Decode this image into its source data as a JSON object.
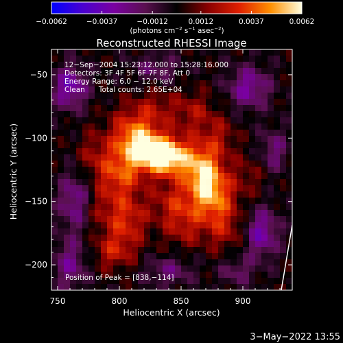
{
  "chart_data": {
    "type": "heatmap",
    "title": "Reconstructed RHESSI Image",
    "xlabel": "Heliocentric X (arcsec)",
    "ylabel": "Heliocentric Y (arcsec)",
    "xlim": [
      745,
      940
    ],
    "ylim": [
      -220,
      -30
    ],
    "x_ticks": [
      750,
      800,
      850,
      900
    ],
    "y_ticks": [
      -50,
      -100,
      -150,
      -200
    ],
    "x_tick_labels": [
      "750",
      "800",
      "850",
      "900"
    ],
    "y_tick_labels": [
      "−50",
      "−100",
      "−150",
      "−200"
    ],
    "colorbar": {
      "min": -0.0062,
      "max": 0.0062,
      "tick_values": [
        -0.0062,
        -0.0037,
        -0.0012,
        0.0012,
        0.0037,
        0.0062
      ],
      "tick_labels": [
        "−0.0062",
        "−0.0037",
        "−0.0012",
        "0.0012",
        "0.0037",
        "0.0062"
      ],
      "unit_label_base": "(photons cm",
      "unit_label_exp1": "−2",
      "unit_label_mid": " s",
      "unit_label_exp2": "−1",
      "unit_label_end": " asec",
      "unit_label_exp3": "−2",
      "unit_label_close": ")"
    },
    "info_lines": [
      "12−Sep−2004 15:23:12.000 to 15:28:16.000",
      "Detectors: 3F 4F 5F 6F 7F 8F, Att 0",
      "Energy Range: 6.0 − 12.0 keV",
      "Clean      Total counts: 2.65E+04"
    ],
    "peak_label": "Position of Peak = [838,−114]",
    "peak": {
      "x": 838,
      "y": -114
    },
    "sources": [
      {
        "x": 838,
        "y": -114,
        "amp": 0.0062,
        "sx": 10,
        "sy": 10
      },
      {
        "x": 818,
        "y": -110,
        "amp": 0.0044,
        "sx": 12,
        "sy": 12
      },
      {
        "x": 812,
        "y": -95,
        "amp": 0.003,
        "sx": 14,
        "sy": 14
      },
      {
        "x": 860,
        "y": -118,
        "amp": 0.0032,
        "sx": 12,
        "sy": 12
      },
      {
        "x": 875,
        "y": -145,
        "amp": 0.0038,
        "sx": 12,
        "sy": 14
      },
      {
        "x": 870,
        "y": -130,
        "amp": 0.0028,
        "sx": 10,
        "sy": 12
      },
      {
        "x": 800,
        "y": -130,
        "amp": 0.003,
        "sx": 12,
        "sy": 14
      },
      {
        "x": 805,
        "y": -165,
        "amp": 0.0028,
        "sx": 12,
        "sy": 14
      },
      {
        "x": 795,
        "y": -190,
        "amp": 0.0022,
        "sx": 12,
        "sy": 10
      },
      {
        "x": 845,
        "y": -150,
        "amp": 0.0022,
        "sx": 14,
        "sy": 12
      },
      {
        "x": 852,
        "y": -170,
        "amp": 0.0018,
        "sx": 12,
        "sy": 12
      },
      {
        "x": 885,
        "y": -170,
        "amp": 0.002,
        "sx": 12,
        "sy": 14
      },
      {
        "x": 880,
        "y": -100,
        "amp": 0.0018,
        "sx": 10,
        "sy": 12
      },
      {
        "x": 860,
        "y": -80,
        "amp": 0.0018,
        "sx": 12,
        "sy": 12
      },
      {
        "x": 830,
        "y": -75,
        "amp": 0.0014,
        "sx": 12,
        "sy": 10
      },
      {
        "x": 780,
        "y": -115,
        "amp": 0.0016,
        "sx": 10,
        "sy": 14
      },
      {
        "x": 780,
        "y": -155,
        "amp": 0.0014,
        "sx": 10,
        "sy": 12
      },
      {
        "x": 905,
        "y": -130,
        "amp": 0.0012,
        "sx": 10,
        "sy": 12
      },
      {
        "x": 760,
        "y": -60,
        "amp": -0.0035,
        "sx": 10,
        "sy": 12
      },
      {
        "x": 765,
        "y": -150,
        "amp": -0.003,
        "sx": 10,
        "sy": 16
      },
      {
        "x": 760,
        "y": -200,
        "amp": -0.0025,
        "sx": 10,
        "sy": 14
      },
      {
        "x": 905,
        "y": -60,
        "amp": -0.003,
        "sx": 12,
        "sy": 12
      },
      {
        "x": 915,
        "y": -175,
        "amp": -0.0032,
        "sx": 10,
        "sy": 14
      },
      {
        "x": 925,
        "y": -110,
        "amp": -0.0022,
        "sx": 8,
        "sy": 12
      },
      {
        "x": 830,
        "y": -45,
        "amp": -0.0018,
        "sx": 14,
        "sy": 8
      },
      {
        "x": 840,
        "y": -205,
        "amp": -0.002,
        "sx": 14,
        "sy": 8
      },
      {
        "x": 895,
        "y": -205,
        "amp": -0.0018,
        "sx": 10,
        "sy": 8
      }
    ]
  },
  "footer_date": "3−May−2022 13:55"
}
